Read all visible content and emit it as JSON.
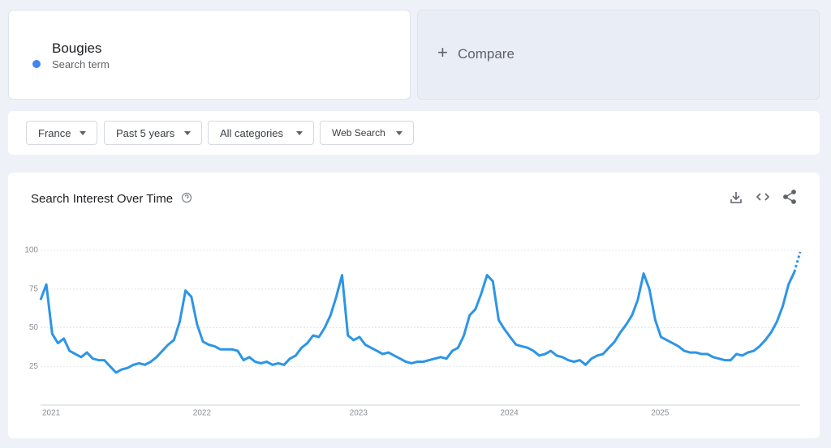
{
  "search": {
    "term": "Bougies",
    "term_subtitle": "Search term",
    "compare": "Compare"
  },
  "filters": [
    "France",
    "Past 5 years",
    "All categories",
    "Web Search"
  ],
  "chart_data": {
    "type": "line",
    "title": "Search Interest Over Time",
    "color": "#2d95e6",
    "categories": [
      "2021",
      null,
      null,
      null,
      null,
      null,
      null,
      null,
      null,
      null,
      null,
      null,
      null,
      null,
      null,
      null,
      null,
      null,
      null,
      null,
      null,
      null,
      null,
      null,
      null,
      null,
      "2022",
      null,
      null,
      null,
      null,
      null,
      null,
      null,
      null,
      null,
      null,
      null,
      null,
      null,
      null,
      null,
      null,
      null,
      null,
      null,
      null,
      null,
      null,
      null,
      null,
      null,
      null,
      "2023",
      null,
      null,
      null,
      null,
      null,
      null,
      null,
      null,
      null,
      null,
      null,
      null,
      null,
      null,
      null,
      null,
      null,
      null,
      null,
      null,
      null,
      null,
      null,
      null,
      null,
      "2024",
      null,
      null,
      null,
      null,
      null,
      null,
      null,
      null,
      null,
      null,
      null,
      null,
      null,
      null,
      null,
      null,
      null,
      null,
      null,
      null,
      null,
      null,
      null,
      null,
      null,
      "2025",
      null,
      null,
      null,
      null,
      null,
      null,
      null,
      null,
      null,
      null,
      null,
      null,
      null,
      null,
      null,
      null,
      null,
      null,
      null,
      null,
      null,
      null,
      null,
      null,
      null,
      null
    ],
    "values": [
      68,
      78,
      46,
      40,
      43,
      35,
      33,
      31,
      34,
      30,
      29,
      29,
      25,
      21,
      23,
      24,
      26,
      27,
      26,
      28,
      31,
      35,
      39,
      42,
      54,
      74,
      70,
      52,
      41,
      39,
      38,
      36,
      36,
      36,
      35,
      29,
      31,
      28,
      27,
      28,
      26,
      27,
      26,
      30,
      32,
      37,
      40,
      45,
      44,
      50,
      58,
      70,
      84,
      45,
      42,
      44,
      39,
      37,
      35,
      33,
      34,
      32,
      30,
      28,
      27,
      28,
      28,
      29,
      30,
      31,
      30,
      35,
      37,
      45,
      58,
      62,
      72,
      84,
      80,
      55,
      49,
      44,
      39,
      38,
      37,
      35,
      32,
      33,
      35,
      32,
      31,
      29,
      28,
      29,
      26,
      30,
      32,
      33,
      37,
      41,
      47,
      52,
      58,
      68,
      85,
      75,
      55,
      44,
      42,
      40,
      38,
      35,
      34,
      34,
      33,
      33,
      31,
      30,
      29,
      29,
      33,
      32,
      34,
      35,
      38,
      42,
      47,
      54,
      64,
      78,
      86,
      99
    ],
    "ylim": [
      0,
      100
    ],
    "yticks": [
      25,
      50,
      75,
      100
    ],
    "grid": true
  }
}
